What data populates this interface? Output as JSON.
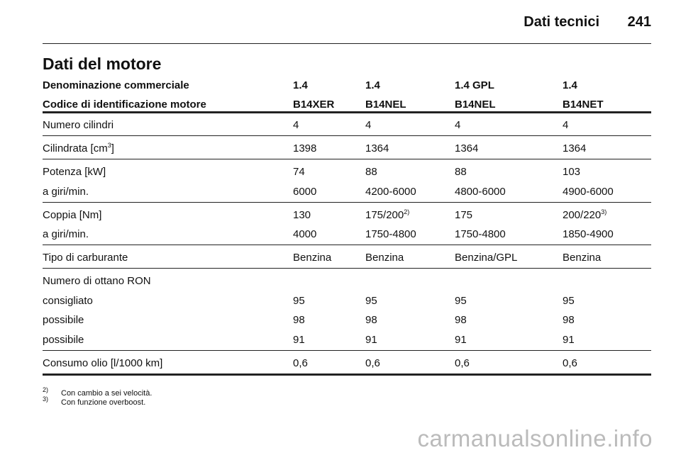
{
  "header": {
    "section": "Dati tecnici",
    "page": "241"
  },
  "title": "Dati del motore",
  "table": {
    "header_rows": [
      [
        "Denominazione commerciale",
        "1.4",
        "1.4",
        "1.4 GPL",
        "1.4"
      ],
      [
        "Codice di identificazione motore",
        "B14XER",
        "B14NEL",
        "B14NEL",
        "B14NET"
      ]
    ],
    "groups": [
      [
        [
          "Numero cilindri",
          "4",
          "4",
          "4",
          "4"
        ]
      ],
      [
        [
          {
            "text": "Cilindrata [cm",
            "sup": "3",
            "tail": "]"
          },
          "1398",
          "1364",
          "1364",
          "1364"
        ]
      ],
      [
        [
          "Potenza [kW]",
          "74",
          "88",
          "88",
          "103"
        ],
        [
          "a giri/min.",
          "6000",
          "4200-6000",
          "4800-6000",
          "4900-6000"
        ]
      ],
      [
        [
          "Coppia [Nm]",
          "130",
          {
            "text": "175/200",
            "sup": "2)"
          },
          "175",
          {
            "text": "200/220",
            "sup": "3)"
          }
        ],
        [
          "a giri/min.",
          "4000",
          "1750-4800",
          "1750-4800",
          "1850-4900"
        ]
      ],
      [
        [
          "Tipo di carburante",
          "Benzina",
          "Benzina",
          "Benzina/GPL",
          "Benzina"
        ]
      ],
      [
        [
          "Numero di ottano RON"
        ],
        [
          "consigliato",
          "95",
          "95",
          "95",
          "95"
        ],
        [
          "possibile",
          "98",
          "98",
          "98",
          "98"
        ],
        [
          "possibile",
          "91",
          "91",
          "91",
          "91"
        ]
      ],
      [
        [
          "Consumo olio [l/1000 km]",
          "0,6",
          "0,6",
          "0,6",
          "0,6"
        ]
      ]
    ]
  },
  "footnotes": [
    {
      "mark": "2)",
      "text": "Con cambio a sei velocità."
    },
    {
      "mark": "3)",
      "text": "Con funzione overboost."
    }
  ],
  "watermark": "carmanualsonline.info"
}
